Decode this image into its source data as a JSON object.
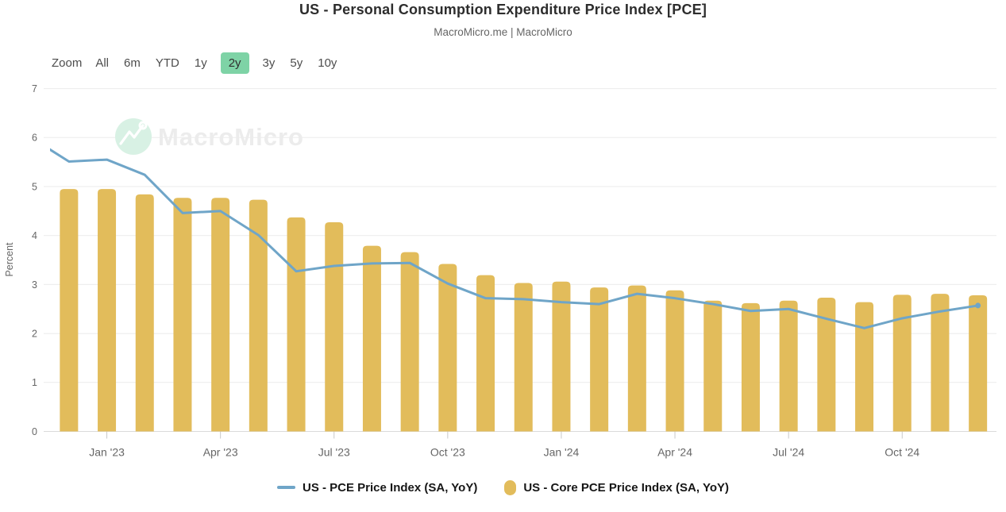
{
  "header": {
    "title": "US - Personal Consumption Expenditure Price Index [PCE]",
    "subtitle": "MacroMicro.me | MacroMicro"
  },
  "range_selector": {
    "label": "Zoom",
    "buttons": [
      "All",
      "6m",
      "YTD",
      "1y",
      "2y",
      "3y",
      "5y",
      "10y"
    ],
    "selected": "2y",
    "selected_bg": "#7ed3a6"
  },
  "watermark": {
    "text": "MacroMicro"
  },
  "chart_data": {
    "type": "combo",
    "title": "US - Personal Consumption Expenditure Price Index [PCE]",
    "subtitle": "MacroMicro.me | MacroMicro",
    "categories": [
      "Dec '22",
      "Jan '23",
      "Feb '23",
      "Mar '23",
      "Apr '23",
      "May '23",
      "Jun '23",
      "Jul '23",
      "Aug '23",
      "Sep '23",
      "Oct '23",
      "Nov '23",
      "Dec '23",
      "Jan '24",
      "Feb '24",
      "Mar '24",
      "Apr '24",
      "May '24",
      "Jun '24",
      "Jul '24",
      "Aug '24",
      "Sep '24",
      "Oct '24",
      "Nov '24",
      "Dec '24"
    ],
    "series": [
      {
        "name": "US - PCE Price Index (SA, YoY)",
        "type": "line",
        "color": "#6fa5c8",
        "pre_point": {
          "category": "Nov '22",
          "value": 6.0,
          "clipped_at_left_edge": true
        },
        "values": [
          5.51,
          5.55,
          5.24,
          4.46,
          4.5,
          4.01,
          3.27,
          3.38,
          3.43,
          3.44,
          3.02,
          2.72,
          2.7,
          2.64,
          2.6,
          2.81,
          2.72,
          2.6,
          2.46,
          2.5,
          2.3,
          2.11,
          2.31,
          2.45,
          2.57
        ],
        "end_marker": true
      },
      {
        "name": "US - Core PCE Price Index (SA, YoY)",
        "type": "bar",
        "color": "#e2bc5b",
        "values": [
          4.95,
          4.95,
          4.84,
          4.77,
          4.77,
          4.73,
          4.37,
          4.27,
          3.79,
          3.66,
          3.42,
          3.19,
          3.03,
          3.06,
          2.94,
          2.98,
          2.88,
          2.67,
          2.62,
          2.67,
          2.73,
          2.64,
          2.79,
          2.81,
          2.78
        ]
      }
    ],
    "ylabel": "Percent",
    "xlabel": "",
    "ylim": [
      0,
      7
    ],
    "yticks": [
      0,
      1,
      2,
      3,
      4,
      5,
      6,
      7
    ],
    "xtick_labels": [
      "Jan '23",
      "Apr '23",
      "Jul '23",
      "Oct '23",
      "Jan '24",
      "Apr '24",
      "Jul '24",
      "Oct '24"
    ],
    "xtick_indices": [
      1,
      4,
      7,
      10,
      13,
      16,
      19,
      22
    ],
    "grid": true,
    "legend_position": "bottom",
    "colors": {
      "grid_line": "#ebebeb",
      "axis_line": "#dadada",
      "tick_mark": "#c9c9c9",
      "axis_text": "#666666",
      "watermark_circle": "#d8f1e4",
      "watermark_text": "#ececec"
    }
  }
}
